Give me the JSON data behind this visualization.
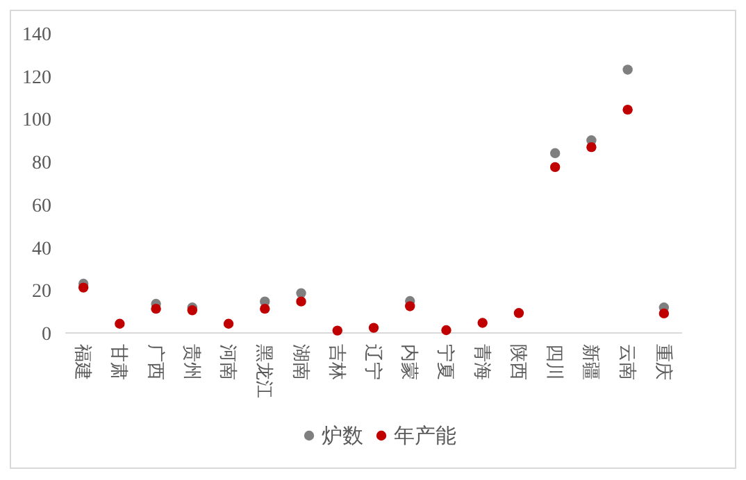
{
  "chart_data": {
    "type": "scatter",
    "categories": [
      "福建",
      "甘肃",
      "广西",
      "贵州",
      "河南",
      "黑龙江",
      "湖南",
      "吉林",
      "辽宁",
      "内蒙",
      "宁夏",
      "青海",
      "陕西",
      "四川",
      "新疆",
      "云南",
      "重庆"
    ],
    "series": [
      {
        "name": "炉数",
        "color": "#7f7f7f",
        "values": [
          23,
          null,
          13.6,
          11.9,
          null,
          14.7,
          18.6,
          null,
          null,
          14.9,
          null,
          null,
          null,
          84,
          90,
          123,
          11.9
        ]
      },
      {
        "name": "年产能",
        "color": "#c00000",
        "values": [
          21.2,
          4.3,
          11.3,
          10.6,
          4.3,
          11.3,
          14.7,
          1.1,
          2.4,
          12.5,
          1.3,
          4.7,
          9.3,
          77.5,
          86.8,
          104.3,
          9.1
        ]
      }
    ],
    "ylim": [
      0,
      140
    ],
    "yticks": [
      0,
      20,
      40,
      60,
      80,
      100,
      120,
      140
    ],
    "legend": "bottom",
    "marker": "circle"
  }
}
